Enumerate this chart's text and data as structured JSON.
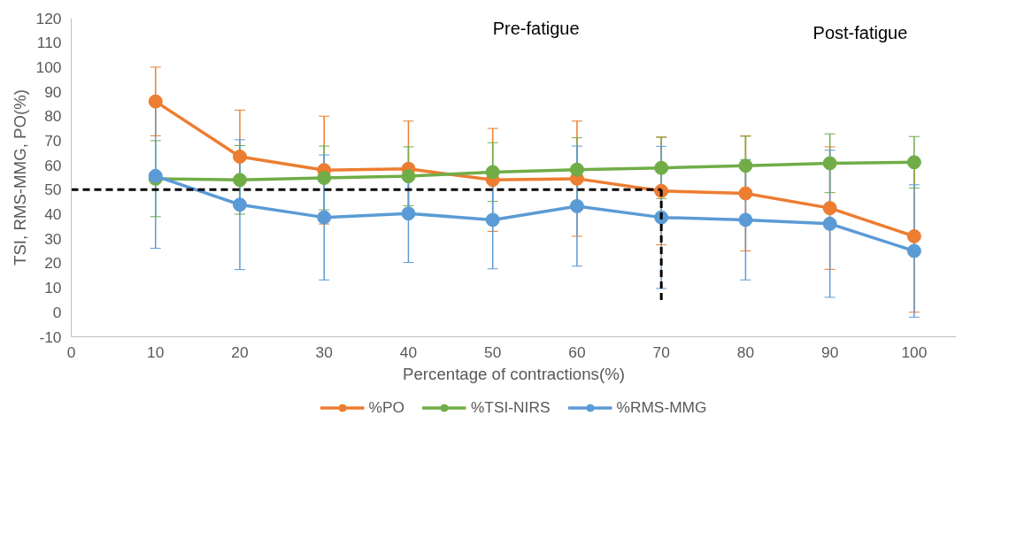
{
  "chart_data": {
    "type": "line",
    "xlabel": "Percentage of contractions(%)",
    "ylabel": "TSI, RMS-MMG, PO(%)",
    "x": [
      10,
      20,
      30,
      40,
      50,
      60,
      70,
      80,
      90,
      100
    ],
    "series": [
      {
        "name": "%PO",
        "color": "#ed7d31",
        "values": [
          86,
          63.5,
          58,
          58.5,
          54,
          54.5,
          49.5,
          48.5,
          42.5,
          31
        ],
        "errors": [
          14,
          19,
          22,
          19.5,
          21,
          23.5,
          22,
          23.5,
          25,
          31
        ]
      },
      {
        "name": "%TSI-NIRS",
        "color": "#70ad47",
        "values": [
          54.5,
          54,
          54.8,
          55.5,
          57.2,
          58.2,
          58.9,
          59.8,
          60.8,
          61.2
        ],
        "errors": [
          15.5,
          14,
          13,
          12,
          12,
          13,
          12.5,
          12,
          12,
          10.5
        ]
      },
      {
        "name": "%RMS-MMG",
        "color": "#5b9bd5",
        "values": [
          55.6,
          43.9,
          38.7,
          40.3,
          37.7,
          43.3,
          38.7,
          37.7,
          36.1,
          25
        ],
        "errors": [
          29.5,
          26.5,
          25.5,
          20,
          20,
          24.5,
          29,
          24.5,
          30,
          27
        ]
      }
    ],
    "xlim": [
      0,
      105
    ],
    "ylim": [
      -10,
      120
    ],
    "xticks": [
      0,
      10,
      20,
      30,
      40,
      50,
      60,
      70,
      80,
      90,
      100
    ],
    "yticks": [
      -10,
      0,
      10,
      20,
      30,
      40,
      50,
      60,
      70,
      80,
      90,
      100,
      110,
      120
    ],
    "ref_lines": [
      {
        "axis": "y",
        "value": 50,
        "color": "#000000",
        "line_style": "dashed"
      },
      {
        "axis": "x",
        "value": 70,
        "color": "#000000",
        "line_style": "dashed"
      }
    ],
    "annotations": [
      "Pre-fatigue",
      "Post-fatigue"
    ],
    "marker": "circle",
    "line_style": "solid",
    "grid": false,
    "legend": "bottom"
  }
}
